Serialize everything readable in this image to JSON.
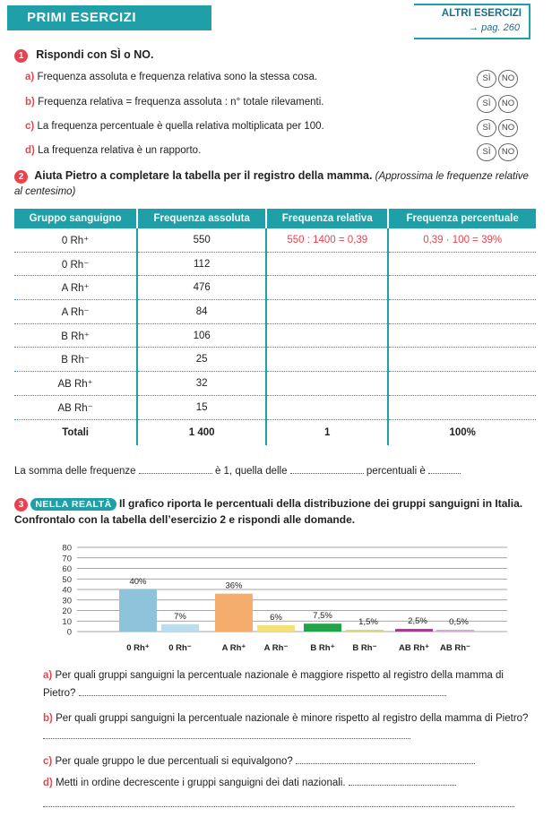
{
  "header": {
    "title": "PRIMI ESERCIZI",
    "other_label": "ALTRI ESERCIZI",
    "page_ref": "→ pag. 260"
  },
  "ex1": {
    "number": "1",
    "title": "Rispondi con SÌ o NO.",
    "yes": "SÌ",
    "no": "NO",
    "items": [
      {
        "letter": "a)",
        "text": "Frequenza assoluta e frequenza relativa sono la stessa cosa."
      },
      {
        "letter": "b)",
        "text": "Frequenza relativa = frequenza assoluta : n° totale rilevamenti."
      },
      {
        "letter": "c)",
        "text": "La frequenza percentuale è quella relativa moltiplicata per 100."
      },
      {
        "letter": "d)",
        "text": "La frequenza relativa è un rapporto."
      }
    ]
  },
  "ex2": {
    "number": "2",
    "title": "Aiuta Pietro a completare la tabella per il registro della mamma.",
    "note": "(Approssima le frequenze relative al centesimo)",
    "headers": [
      "Gruppo sanguigno",
      "Frequenza assoluta",
      "Frequenza relativa",
      "Frequenza percentuale"
    ],
    "rows": [
      {
        "group": "0 Rh⁺",
        "abs": "550",
        "rel": "550 : 1400 = 0,39",
        "perc": "0,39 · 100 = 39%"
      },
      {
        "group": "0 Rh⁻",
        "abs": "112",
        "rel": "",
        "perc": ""
      },
      {
        "group": "A Rh⁺",
        "abs": "476",
        "rel": "",
        "perc": ""
      },
      {
        "group": "A Rh⁻",
        "abs": "84",
        "rel": "",
        "perc": ""
      },
      {
        "group": "B Rh⁺",
        "abs": "106",
        "rel": "",
        "perc": ""
      },
      {
        "group": "B Rh⁻",
        "abs": "25",
        "rel": "",
        "perc": ""
      },
      {
        "group": "AB Rh⁺",
        "abs": "32",
        "rel": "",
        "perc": ""
      },
      {
        "group": "AB Rh⁻",
        "abs": "15",
        "rel": "",
        "perc": ""
      }
    ],
    "totals": {
      "label": "Totali",
      "abs": "1 400",
      "rel": "1",
      "perc": "100%"
    },
    "sentence": {
      "p1": "La somma delle frequenze",
      "p2": "è 1, quella delle",
      "p3": "percentuali è"
    }
  },
  "ex3": {
    "number": "3",
    "badge": "NELLA REALTÀ",
    "title": "Il grafico riporta le percentuali della distribuzione dei gruppi sanguigni in Italia. Confrontalo con la tabella dell’esercizio 2 e rispondi alle domande.",
    "questions": [
      {
        "letter": "a)",
        "text": "Per quali gruppi sanguigni la percentuale nazionale è maggiore rispetto al registro della mamma di Pietro?"
      },
      {
        "letter": "b)",
        "text": "Per quali gruppi sanguigni la percentuale nazionale è minore rispetto al registro della mamma di Pietro?"
      },
      {
        "letter": "c)",
        "text": "Per quale gruppo le due percentuali si equivalgono?"
      },
      {
        "letter": "d)",
        "text": "Metti in ordine decrescente i gruppi sanguigni dei dati nazionali."
      }
    ]
  },
  "chart_data": {
    "type": "bar",
    "categories": [
      "0 Rh⁺",
      "0 Rh⁻",
      "A Rh⁺",
      "A Rh⁻",
      "B Rh⁺",
      "B Rh⁻",
      "AB Rh⁺",
      "AB Rh⁻"
    ],
    "values": [
      40,
      7,
      36,
      6,
      7.5,
      1.5,
      2.5,
      0.5
    ],
    "labels": [
      "40%",
      "7%",
      "36%",
      "6%",
      "7,5%",
      "1,5%",
      "2,5%",
      "0,5%"
    ],
    "colors": [
      "#8fc3dc",
      "#b9def0",
      "#f4ad6d",
      "#f7e07a",
      "#23a347",
      "#d6d97a",
      "#9c3d8e",
      "#d8a9cf"
    ],
    "yticks": [
      "0",
      "10",
      "20",
      "30",
      "40",
      "50",
      "60",
      "70",
      "80"
    ],
    "ylim": [
      0,
      80
    ],
    "grid": true
  }
}
